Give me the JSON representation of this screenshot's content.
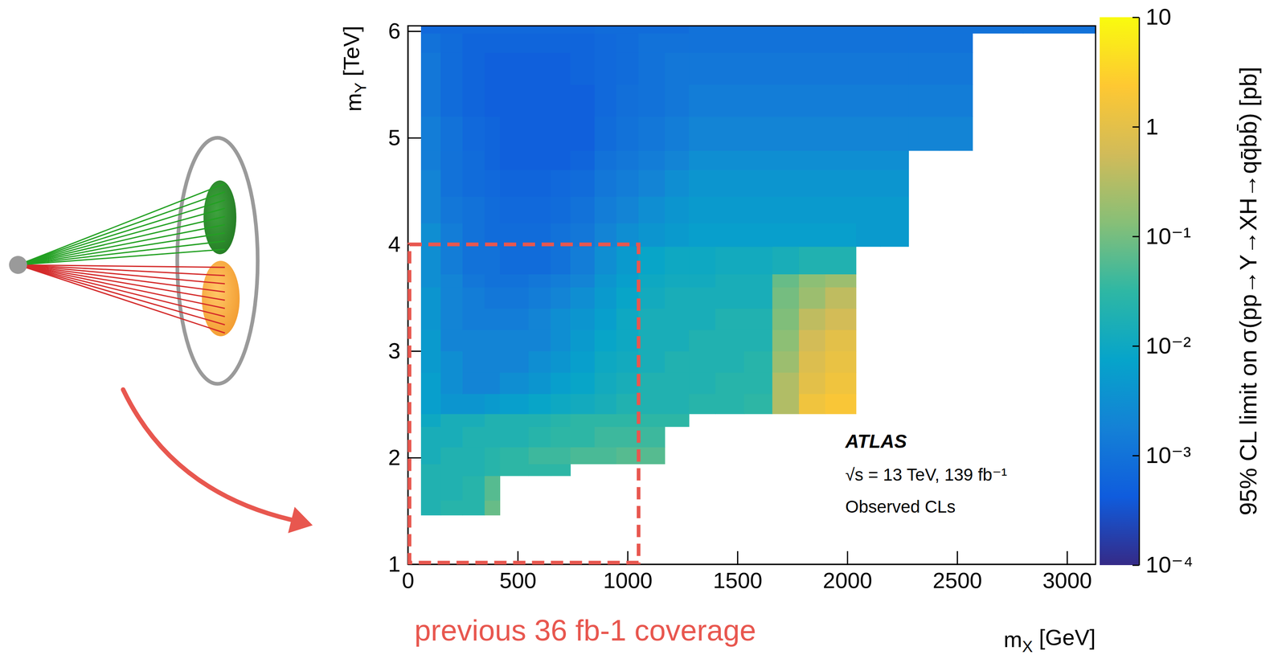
{
  "chart_data": {
    "type": "heatmap",
    "x_label": "mX [GeV]",
    "y_label": "mY [TeV]",
    "xlim": [
      0,
      3130
    ],
    "xticks": [
      0,
      500,
      1000,
      1500,
      2000,
      2500,
      3000
    ],
    "ylim": [
      1,
      6.05
    ],
    "yticks": [
      1,
      2,
      3,
      4,
      5,
      6
    ],
    "x_bins": [
      60,
      150,
      250,
      350,
      420,
      550,
      650,
      740,
      850,
      950,
      1050,
      1170,
      1280,
      1400,
      1530,
      1660,
      1780,
      1900,
      2040,
      2150,
      2280,
      2420,
      2570,
      2800,
      3130
    ],
    "y_bins": [
      1.46,
      1.6,
      1.83,
      1.94,
      2.1,
      2.29,
      2.41,
      2.6,
      2.8,
      3.0,
      3.2,
      3.4,
      3.6,
      3.72,
      3.98,
      4.2,
      4.45,
      4.7,
      4.88,
      5.2,
      5.5,
      5.8,
      5.98,
      6.05
    ],
    "values": [
      [
        0.02,
        0.025,
        0.025,
        0.08,
        null,
        null,
        null,
        null,
        null,
        null,
        null,
        null,
        null,
        null,
        null,
        null,
        null,
        null,
        null,
        null,
        null,
        null,
        null,
        null
      ],
      [
        0.02,
        0.02,
        0.025,
        0.06,
        null,
        null,
        null,
        null,
        null,
        null,
        null,
        null,
        null,
        null,
        null,
        null,
        null,
        null,
        null,
        null,
        null,
        null,
        null,
        null
      ],
      [
        0.02,
        0.02,
        0.02,
        0.025,
        0.03,
        0.03,
        0.03,
        null,
        null,
        null,
        null,
        null,
        null,
        null,
        null,
        null,
        null,
        null,
        null,
        null,
        null,
        null,
        null,
        null
      ],
      [
        0.015,
        0.02,
        0.02,
        0.025,
        0.03,
        0.04,
        0.04,
        0.05,
        0.05,
        0.06,
        0.06,
        null,
        null,
        null,
        null,
        null,
        null,
        null,
        null,
        null,
        null,
        null,
        null,
        null
      ],
      [
        0.015,
        0.015,
        0.02,
        0.02,
        0.02,
        0.025,
        0.03,
        0.03,
        0.04,
        0.04,
        0.04,
        null,
        null,
        null,
        null,
        null,
        null,
        null,
        null,
        null,
        null,
        null,
        null,
        null
      ],
      [
        0.01,
        0.015,
        0.015,
        0.02,
        0.02,
        0.02,
        0.025,
        0.03,
        0.03,
        0.03,
        0.03,
        0.03,
        null,
        null,
        null,
        null,
        null,
        null,
        null,
        null,
        null,
        null,
        null,
        null
      ],
      [
        0.006,
        0.004,
        0.004,
        0.005,
        0.006,
        0.008,
        0.01,
        0.012,
        0.015,
        0.02,
        0.02,
        0.02,
        0.025,
        0.025,
        0.03,
        0.3,
        1.5,
        2,
        null,
        null,
        null,
        null,
        null,
        null
      ],
      [
        0.006,
        0.003,
        0.002,
        0.002,
        0.003,
        0.004,
        0.006,
        0.008,
        0.012,
        0.015,
        0.02,
        0.02,
        0.02,
        0.025,
        0.025,
        0.3,
        1,
        1.5,
        null,
        null,
        null,
        null,
        null,
        null
      ],
      [
        0.005,
        0.003,
        0.002,
        0.002,
        0.002,
        0.003,
        0.004,
        0.006,
        0.01,
        0.012,
        0.015,
        0.02,
        0.02,
        0.02,
        0.025,
        0.2,
        0.8,
        1.2,
        null,
        null,
        null,
        null,
        null,
        null
      ],
      [
        0.005,
        0.002,
        0.002,
        0.002,
        0.002,
        0.002,
        0.003,
        0.005,
        0.008,
        0.01,
        0.015,
        0.015,
        0.02,
        0.02,
        0.02,
        0.15,
        0.6,
        1,
        null,
        null,
        null,
        null,
        null,
        null
      ],
      [
        0.004,
        0.002,
        0.0015,
        0.0015,
        0.0015,
        0.002,
        0.003,
        0.004,
        0.006,
        0.01,
        0.015,
        0.015,
        0.015,
        0.02,
        0.02,
        0.12,
        0.4,
        0.6,
        null,
        null,
        null,
        null,
        null,
        null
      ],
      [
        0.004,
        0.002,
        0.0015,
        0.0012,
        0.0012,
        0.0015,
        0.002,
        0.003,
        0.005,
        0.008,
        0.012,
        0.015,
        0.015,
        0.015,
        0.015,
        0.1,
        0.2,
        0.4,
        null,
        null,
        null,
        null,
        null,
        null
      ],
      [
        0.003,
        0.002,
        0.0012,
        0.001,
        0.001,
        0.0012,
        0.0015,
        0.002,
        0.004,
        0.006,
        0.01,
        0.012,
        0.012,
        0.015,
        0.015,
        0.08,
        0.15,
        0.2,
        null,
        null,
        null,
        null,
        null,
        null
      ],
      [
        0.003,
        0.0015,
        0.001,
        0.001,
        0.0008,
        0.0008,
        0.001,
        0.0015,
        0.003,
        0.005,
        0.008,
        0.01,
        0.01,
        0.012,
        0.012,
        0.015,
        0.02,
        0.02,
        null,
        null,
        null,
        null,
        null,
        null
      ],
      [
        0.003,
        0.0015,
        0.001,
        0.0008,
        0.0008,
        0.0008,
        0.001,
        0.0012,
        0.002,
        0.003,
        0.004,
        0.005,
        0.006,
        0.006,
        0.006,
        0.006,
        0.006,
        0.006,
        0.005,
        0.005,
        null,
        null,
        null,
        null
      ],
      [
        0.002,
        0.0012,
        0.001,
        0.0008,
        0.0007,
        0.0007,
        0.0008,
        0.001,
        0.0015,
        0.002,
        0.003,
        0.004,
        0.005,
        0.005,
        0.005,
        0.005,
        0.005,
        0.005,
        0.005,
        0.005,
        null,
        null,
        null,
        null
      ],
      [
        0.002,
        0.001,
        0.0008,
        0.0007,
        0.0006,
        0.0006,
        0.0007,
        0.0008,
        0.0012,
        0.0015,
        0.002,
        0.003,
        0.004,
        0.004,
        0.004,
        0.004,
        0.004,
        0.004,
        0.004,
        0.004,
        null,
        null,
        null,
        null
      ],
      [
        0.0015,
        0.001,
        0.0008,
        0.0006,
        0.0005,
        0.0005,
        0.0005,
        0.0006,
        0.001,
        0.0012,
        0.0015,
        0.002,
        0.003,
        0.003,
        0.003,
        0.003,
        0.003,
        0.003,
        0.003,
        0.003,
        null,
        null,
        null,
        null
      ],
      [
        0.0015,
        0.001,
        0.0007,
        0.0006,
        0.0005,
        0.0005,
        0.0005,
        0.0005,
        0.0008,
        0.001,
        0.0012,
        0.0015,
        0.002,
        0.002,
        0.002,
        0.002,
        0.002,
        0.002,
        0.002,
        0.002,
        0.002,
        0.002,
        null,
        null
      ],
      [
        0.0012,
        0.0008,
        0.0006,
        0.0005,
        0.0005,
        0.0005,
        0.0005,
        0.0005,
        0.0007,
        0.0009,
        0.001,
        0.0012,
        0.0015,
        0.0015,
        0.0015,
        0.0015,
        0.0015,
        0.0015,
        0.0015,
        0.0015,
        0.0015,
        0.0015,
        null,
        null
      ],
      [
        0.0012,
        0.0008,
        0.0006,
        0.0005,
        0.0005,
        0.0005,
        0.0005,
        0.0006,
        0.0007,
        0.0008,
        0.001,
        0.0012,
        0.0012,
        0.0012,
        0.0012,
        0.0012,
        0.0012,
        0.0012,
        0.0012,
        0.0012,
        0.0012,
        0.0012,
        null,
        null
      ],
      [
        0.001,
        0.0008,
        0.0006,
        0.0006,
        0.0006,
        0.0006,
        0.0006,
        0.0006,
        0.0007,
        0.0008,
        0.001,
        0.001,
        0.001,
        0.001,
        0.001,
        0.001,
        0.001,
        0.001,
        0.001,
        0.001,
        0.001,
        0.001,
        null,
        null
      ],
      [
        0.0007,
        0.0007,
        0.0007,
        0.0007,
        0.0007,
        0.0007,
        0.0007,
        0.0007,
        0.0008,
        0.0008,
        0.0008,
        0.0008,
        0.001,
        0.001,
        0.001,
        0.001,
        0.001,
        0.001,
        0.001,
        0.001,
        0.001,
        0.001,
        0.001,
        0.001
      ]
    ],
    "colorbar": {
      "label": "95% CL limit on σ(pp→Y→XH→qq̄bb̄) [pb]",
      "log": true,
      "zlim": [
        0.0001,
        10
      ],
      "zticks": [
        {
          "value": 0.0001,
          "label": "10⁻⁴"
        },
        {
          "value": 0.001,
          "label": "10⁻³"
        },
        {
          "value": 0.01,
          "label": "10⁻²"
        },
        {
          "value": 0.1,
          "label": "10⁻¹"
        },
        1,
        10
      ]
    },
    "annotations": [
      "ATLAS",
      "√s = 13 TeV, 139 fb⁻¹",
      "Observed CLs"
    ],
    "box": {
      "x": [
        0,
        1050
      ],
      "y": [
        1,
        4
      ],
      "color": "#e8574f",
      "line_style": "dashed",
      "label": "previous 36 fb-1 coverage"
    }
  }
}
